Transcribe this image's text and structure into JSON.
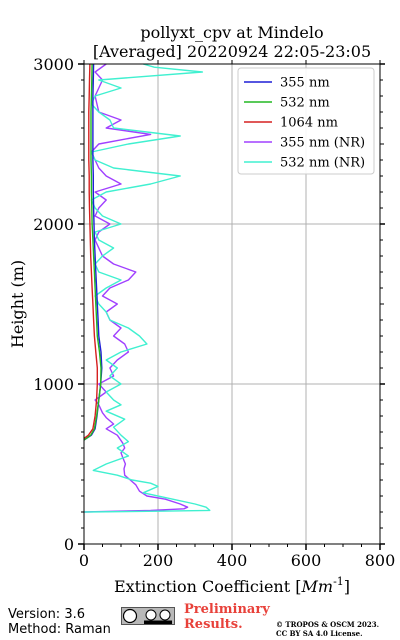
{
  "chart_data": {
    "type": "line",
    "title": "pollyxt_cpv at Mindelo",
    "subtitle": "[Averaged] 20220924 22:05-23:05",
    "xlabel": "Extinction Coefficient [Mm^-1]",
    "ylabel": "Height (m)",
    "xlim": [
      0,
      800
    ],
    "ylim": [
      0,
      3000
    ],
    "x_ticks": [
      0,
      200,
      400,
      600,
      800
    ],
    "y_ticks": [
      0,
      1000,
      2000,
      3000
    ],
    "grid": true,
    "legend_position": "top-right",
    "series": [
      {
        "name": "355 nm",
        "color": "#1f1fd6",
        "points": [
          [
            0,
            650
          ],
          [
            20,
            680
          ],
          [
            30,
            720
          ],
          [
            35,
            800
          ],
          [
            40,
            900
          ],
          [
            45,
            1000
          ],
          [
            48,
            1100
          ],
          [
            46,
            1200
          ],
          [
            40,
            1300
          ],
          [
            38,
            1400
          ],
          [
            36,
            1500
          ],
          [
            34,
            1600
          ],
          [
            32,
            1700
          ],
          [
            30,
            1800
          ],
          [
            28,
            1900
          ],
          [
            27,
            2000
          ],
          [
            26,
            2100
          ],
          [
            25,
            2200
          ],
          [
            25,
            2300
          ],
          [
            24,
            2400
          ],
          [
            24,
            2500
          ],
          [
            24,
            2600
          ],
          [
            24,
            2700
          ],
          [
            24,
            2800
          ],
          [
            25,
            2900
          ],
          [
            26,
            3000
          ]
        ]
      },
      {
        "name": "532 nm",
        "color": "#22b822",
        "points": [
          [
            0,
            650
          ],
          [
            18,
            680
          ],
          [
            28,
            720
          ],
          [
            34,
            800
          ],
          [
            40,
            900
          ],
          [
            45,
            1000
          ],
          [
            46,
            1100
          ],
          [
            42,
            1200
          ],
          [
            36,
            1300
          ],
          [
            34,
            1400
          ],
          [
            32,
            1500
          ],
          [
            30,
            1600
          ],
          [
            28,
            1700
          ],
          [
            26,
            1800
          ],
          [
            24,
            1900
          ],
          [
            22,
            2000
          ],
          [
            21,
            2100
          ],
          [
            20,
            2200
          ],
          [
            20,
            2300
          ],
          [
            19,
            2400
          ],
          [
            19,
            2500
          ],
          [
            19,
            2600
          ],
          [
            19,
            2700
          ],
          [
            20,
            2800
          ],
          [
            21,
            2900
          ],
          [
            22,
            3000
          ]
        ]
      },
      {
        "name": "1064 nm",
        "color": "#d62020",
        "points": [
          [
            0,
            660
          ],
          [
            12,
            680
          ],
          [
            24,
            720
          ],
          [
            30,
            800
          ],
          [
            34,
            900
          ],
          [
            36,
            1000
          ],
          [
            36,
            1100
          ],
          [
            32,
            1200
          ],
          [
            28,
            1300
          ],
          [
            26,
            1400
          ],
          [
            24,
            1500
          ],
          [
            22,
            1600
          ],
          [
            20,
            1700
          ],
          [
            18,
            1800
          ],
          [
            17,
            1900
          ],
          [
            16,
            2000
          ],
          [
            15,
            2100
          ],
          [
            14,
            2200
          ],
          [
            14,
            2300
          ],
          [
            13,
            2400
          ],
          [
            13,
            2500
          ],
          [
            13,
            2600
          ],
          [
            13,
            2700
          ],
          [
            14,
            2800
          ],
          [
            15,
            2900
          ],
          [
            16,
            3000
          ]
        ]
      },
      {
        "name": "355 nm (NR)",
        "color": "#a040ff",
        "points": [
          [
            0,
            200
          ],
          [
            180,
            210
          ],
          [
            270,
            220
          ],
          [
            280,
            230
          ],
          [
            260,
            250
          ],
          [
            220,
            280
          ],
          [
            170,
            300
          ],
          [
            150,
            330
          ],
          [
            140,
            370
          ],
          [
            125,
            400
          ],
          [
            110,
            430
          ],
          [
            108,
            470
          ],
          [
            112,
            500
          ],
          [
            105,
            540
          ],
          [
            100,
            570
          ],
          [
            110,
            600
          ],
          [
            105,
            630
          ],
          [
            90,
            680
          ],
          [
            60,
            720
          ],
          [
            80,
            750
          ],
          [
            60,
            790
          ],
          [
            50,
            820
          ],
          [
            40,
            870
          ],
          [
            30,
            900
          ],
          [
            60,
            950
          ],
          [
            40,
            1000
          ],
          [
            80,
            1050
          ],
          [
            70,
            1100
          ],
          [
            90,
            1150
          ],
          [
            120,
            1200
          ],
          [
            110,
            1250
          ],
          [
            80,
            1300
          ],
          [
            100,
            1350
          ],
          [
            70,
            1400
          ],
          [
            60,
            1450
          ],
          [
            90,
            1500
          ],
          [
            50,
            1550
          ],
          [
            70,
            1600
          ],
          [
            120,
            1650
          ],
          [
            140,
            1700
          ],
          [
            80,
            1750
          ],
          [
            50,
            1800
          ],
          [
            30,
            1900
          ],
          [
            40,
            1950
          ],
          [
            70,
            2000
          ],
          [
            30,
            2050
          ],
          [
            40,
            2100
          ],
          [
            60,
            2150
          ],
          [
            30,
            2200
          ],
          [
            100,
            2250
          ],
          [
            60,
            2300
          ],
          [
            40,
            2350
          ],
          [
            30,
            2400
          ],
          [
            20,
            2450
          ],
          [
            40,
            2500
          ],
          [
            180,
            2560
          ],
          [
            60,
            2600
          ],
          [
            100,
            2650
          ],
          [
            40,
            2700
          ],
          [
            30,
            2800
          ],
          [
            40,
            2850
          ],
          [
            50,
            2900
          ],
          [
            30,
            2950
          ],
          [
            60,
            3000
          ]
        ]
      },
      {
        "name": "532 nm (NR)",
        "color": "#40f0d0",
        "points": [
          [
            0,
            200
          ],
          [
            200,
            205
          ],
          [
            340,
            210
          ],
          [
            330,
            230
          ],
          [
            300,
            250
          ],
          [
            240,
            280
          ],
          [
            160,
            320
          ],
          [
            200,
            360
          ],
          [
            180,
            380
          ],
          [
            130,
            400
          ],
          [
            90,
            430
          ],
          [
            25,
            460
          ],
          [
            60,
            500
          ],
          [
            120,
            550
          ],
          [
            90,
            600
          ],
          [
            120,
            640
          ],
          [
            100,
            680
          ],
          [
            80,
            730
          ],
          [
            110,
            780
          ],
          [
            60,
            830
          ],
          [
            100,
            870
          ],
          [
            80,
            900
          ],
          [
            60,
            950
          ],
          [
            100,
            1000
          ],
          [
            70,
            1050
          ],
          [
            90,
            1100
          ],
          [
            60,
            1150
          ],
          [
            100,
            1200
          ],
          [
            170,
            1250
          ],
          [
            150,
            1300
          ],
          [
            120,
            1350
          ],
          [
            70,
            1400
          ],
          [
            60,
            1450
          ],
          [
            40,
            1500
          ],
          [
            30,
            1550
          ],
          [
            60,
            1600
          ],
          [
            100,
            1650
          ],
          [
            40,
            1700
          ],
          [
            30,
            1750
          ],
          [
            50,
            1800
          ],
          [
            80,
            1850
          ],
          [
            40,
            1900
          ],
          [
            30,
            1950
          ],
          [
            100,
            2000
          ],
          [
            50,
            2050
          ],
          [
            30,
            2100
          ],
          [
            20,
            2150
          ],
          [
            60,
            2200
          ],
          [
            180,
            2250
          ],
          [
            260,
            2300
          ],
          [
            80,
            2350
          ],
          [
            30,
            2400
          ],
          [
            20,
            2450
          ],
          [
            120,
            2500
          ],
          [
            260,
            2550
          ],
          [
            80,
            2600
          ],
          [
            70,
            2650
          ],
          [
            40,
            2700
          ],
          [
            20,
            2750
          ],
          [
            30,
            2800
          ],
          [
            100,
            2850
          ],
          [
            40,
            2900
          ],
          [
            320,
            2950
          ],
          [
            190,
            2980
          ],
          [
            160,
            3000
          ]
        ]
      }
    ]
  },
  "footer": {
    "version": "Version: 3.6",
    "method": "Method: Raman",
    "cc_label": "CC BY SA",
    "preliminary_line1": "Preliminary",
    "preliminary_line2": "Results.",
    "copyright_line1": "© TROPOS & OSCM 2023.",
    "copyright_line2": "CC BY SA 4.0 License."
  }
}
